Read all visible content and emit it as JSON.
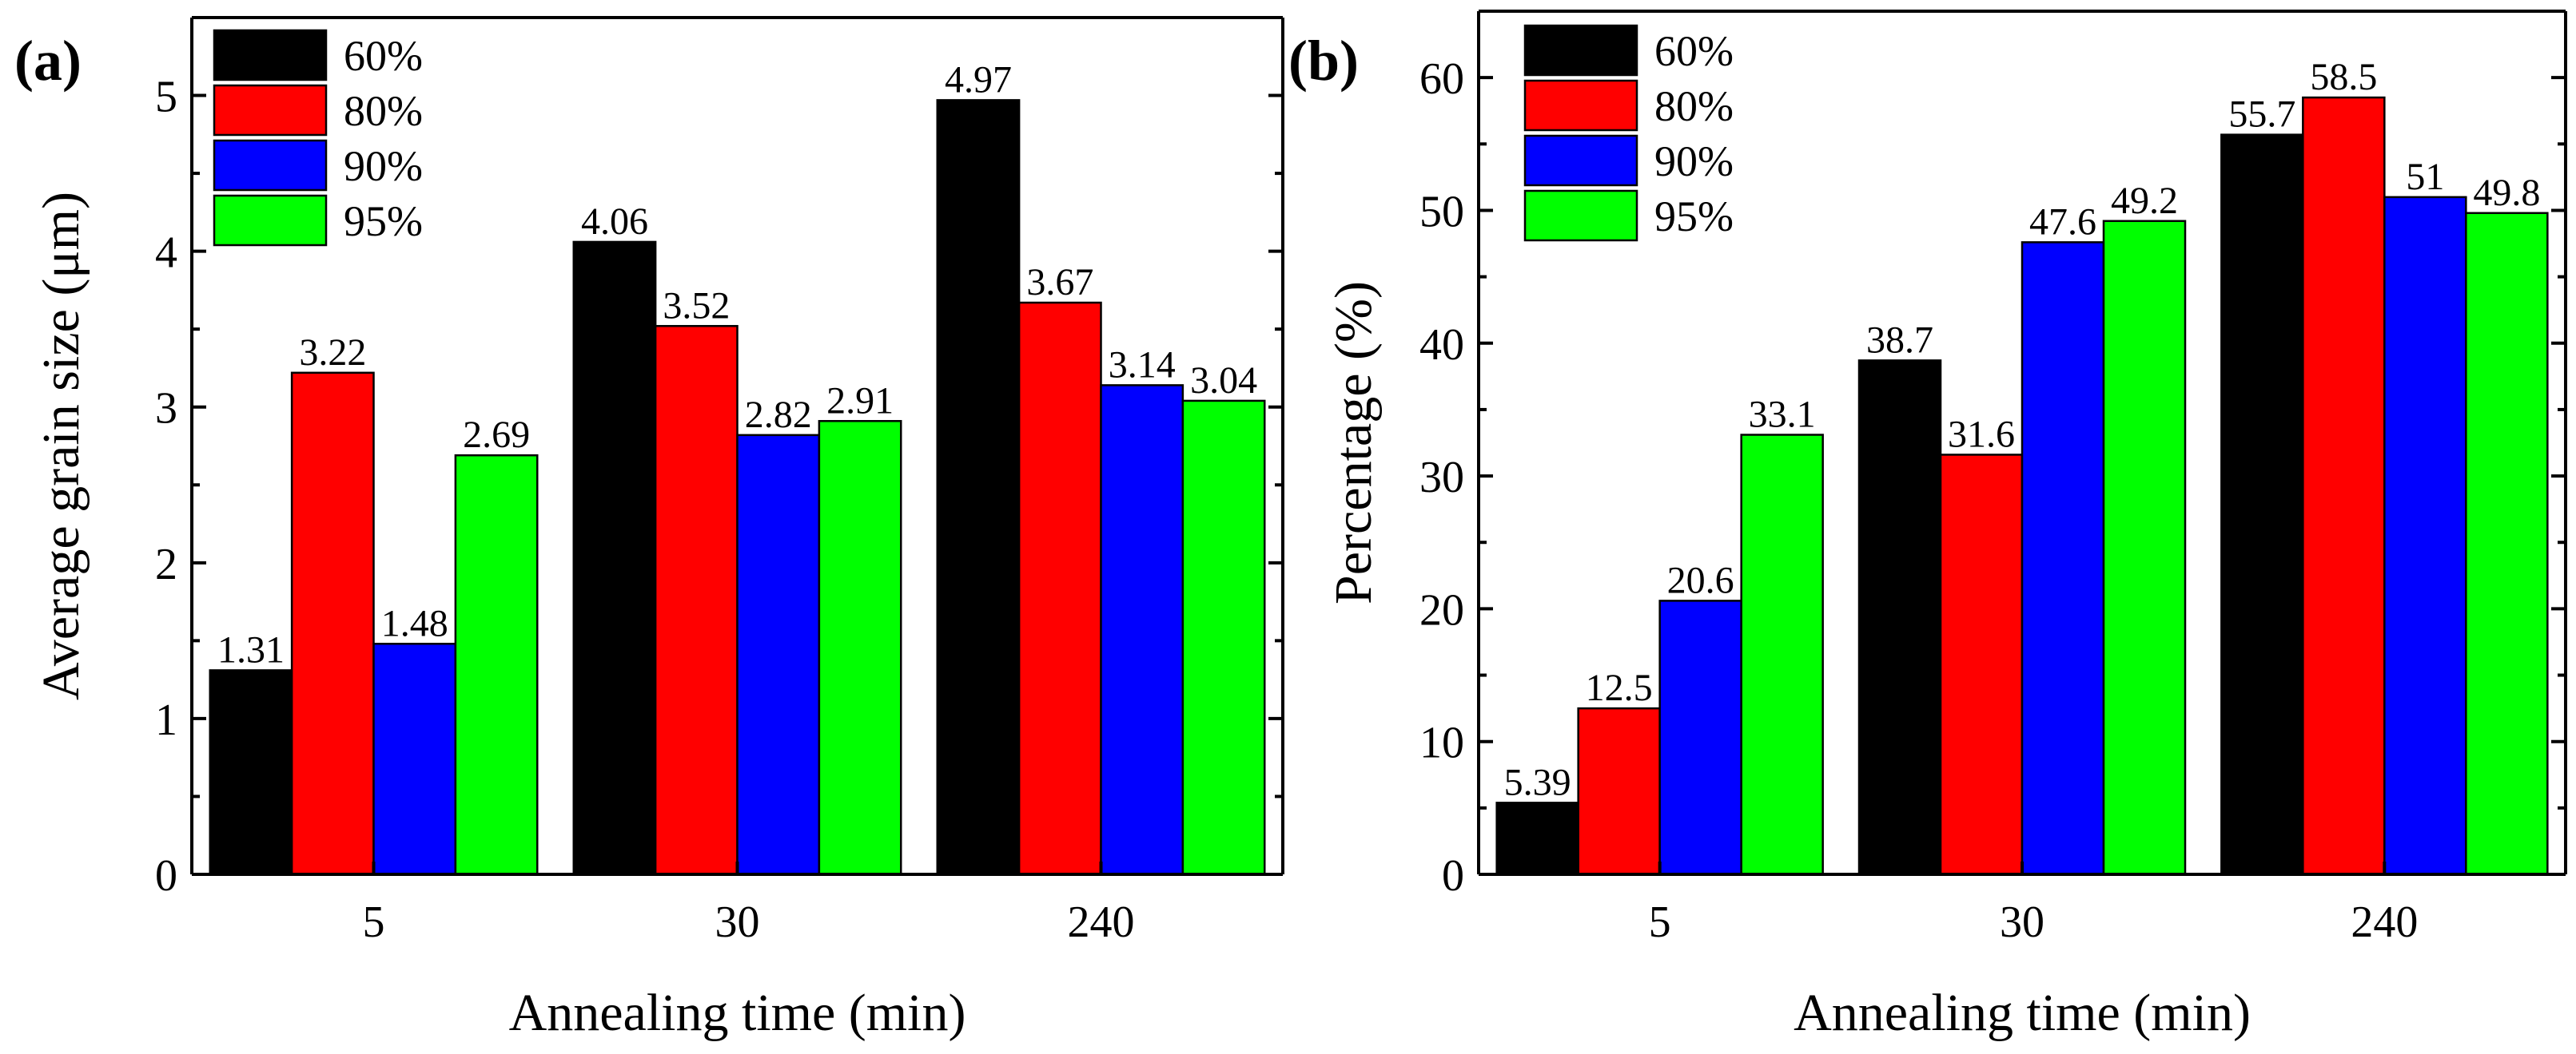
{
  "chart_data": [
    {
      "type": "bar",
      "panel_label": "(a)",
      "title": "",
      "xlabel": "Annealing time (min)",
      "ylabel": "Average grain size (μm)",
      "categories": [
        "5",
        "30",
        "240"
      ],
      "ylim": [
        0,
        5.5
      ],
      "yticks": [
        0,
        1,
        2,
        3,
        4,
        5
      ],
      "legend": "top-left",
      "grid": false,
      "series": [
        {
          "name": "60%",
          "color": "#000000",
          "values": [
            1.31,
            4.06,
            4.97
          ],
          "labels": [
            "1.31",
            "4.06",
            "4.97"
          ]
        },
        {
          "name": "80%",
          "color": "#ff0000",
          "values": [
            3.22,
            3.52,
            3.67
          ],
          "labels": [
            "3.22",
            "3.52",
            "3.67"
          ]
        },
        {
          "name": "90%",
          "color": "#0000ff",
          "values": [
            1.48,
            2.82,
            3.14
          ],
          "labels": [
            "1.48",
            "2.82",
            "3.14"
          ]
        },
        {
          "name": "95%",
          "color": "#00ff00",
          "values": [
            2.69,
            2.91,
            3.04
          ],
          "labels": [
            "2.69",
            "2.91",
            "3.04"
          ]
        }
      ]
    },
    {
      "type": "bar",
      "panel_label": "(b)",
      "title": "",
      "xlabel": "Annealing time (min)",
      "ylabel": "Percentage (%)",
      "categories": [
        "5",
        "30",
        "240"
      ],
      "ylim": [
        0,
        65
      ],
      "yticks": [
        0,
        10,
        20,
        30,
        40,
        50,
        60
      ],
      "legend": "top-left",
      "grid": false,
      "series": [
        {
          "name": "60%",
          "color": "#000000",
          "values": [
            5.39,
            38.7,
            55.7
          ],
          "labels": [
            "5.39",
            "38.7",
            "55.7"
          ]
        },
        {
          "name": "80%",
          "color": "#ff0000",
          "values": [
            12.5,
            31.6,
            58.5
          ],
          "labels": [
            "12.5",
            "31.6",
            "58.5"
          ]
        },
        {
          "name": "90%",
          "color": "#0000ff",
          "values": [
            20.6,
            47.6,
            51
          ],
          "labels": [
            "20.6",
            "47.6",
            "51"
          ]
        },
        {
          "name": "95%",
          "color": "#00ff00",
          "values": [
            33.1,
            49.2,
            49.8
          ],
          "labels": [
            "33.1",
            "49.2",
            "49.8"
          ]
        }
      ]
    }
  ]
}
